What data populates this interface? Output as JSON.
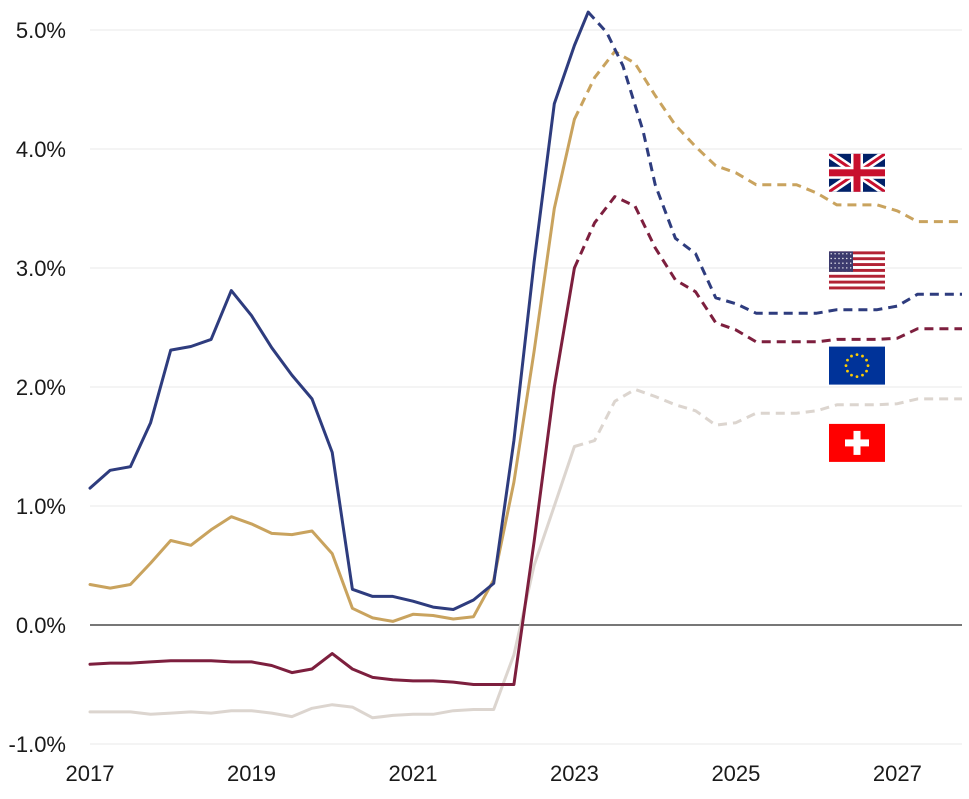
{
  "chart_data": {
    "type": "line",
    "title": "",
    "xlabel": "",
    "ylabel": "",
    "xlim": [
      2017,
      2027.8
    ],
    "ylim": [
      -1.0,
      5.0
    ],
    "grid": true,
    "legend": "flags at right",
    "x_ticks": [
      {
        "value": 2017,
        "label": "2017"
      },
      {
        "value": 2019,
        "label": "2019"
      },
      {
        "value": 2021,
        "label": "2021"
      },
      {
        "value": 2023,
        "label": "2023"
      },
      {
        "value": 2025,
        "label": "2025"
      },
      {
        "value": 2027,
        "label": "2027"
      }
    ],
    "y_ticks": [
      {
        "value": 5.0,
        "label": "5.0%"
      },
      {
        "value": 4.0,
        "label": "4.0%"
      },
      {
        "value": 3.0,
        "label": "3.0%"
      },
      {
        "value": 2.0,
        "label": "2.0%"
      },
      {
        "value": 1.0,
        "label": "1.0%"
      },
      {
        "value": 0.0,
        "label": "0.0%"
      },
      {
        "value": -1.0,
        "label": "-1.0%"
      }
    ],
    "series": [
      {
        "flag": "us-flag",
        "color": "#2e3c7e",
        "actual": [
          [
            2017.0,
            1.15
          ],
          [
            2017.25,
            1.3
          ],
          [
            2017.5,
            1.33
          ],
          [
            2017.75,
            1.7
          ],
          [
            2018.0,
            2.31
          ],
          [
            2018.25,
            2.34
          ],
          [
            2018.5,
            2.4
          ],
          [
            2018.75,
            2.81
          ],
          [
            2019.0,
            2.6
          ],
          [
            2019.25,
            2.33
          ],
          [
            2019.5,
            2.1
          ],
          [
            2019.75,
            1.9
          ],
          [
            2020.0,
            1.45
          ],
          [
            2020.25,
            0.3
          ],
          [
            2020.5,
            0.24
          ],
          [
            2020.75,
            0.24
          ],
          [
            2021.0,
            0.2
          ],
          [
            2021.25,
            0.15
          ],
          [
            2021.5,
            0.13
          ],
          [
            2021.75,
            0.21
          ],
          [
            2022.0,
            0.35
          ],
          [
            2022.25,
            1.55
          ],
          [
            2022.5,
            3.05
          ],
          [
            2022.75,
            4.38
          ],
          [
            2023.0,
            4.87
          ],
          [
            2023.17,
            5.15
          ]
        ],
        "forecast": [
          [
            2023.17,
            5.15
          ],
          [
            2023.4,
            4.98
          ],
          [
            2023.6,
            4.7
          ],
          [
            2023.85,
            4.15
          ],
          [
            2024.0,
            3.7
          ],
          [
            2024.25,
            3.25
          ],
          [
            2024.5,
            3.12
          ],
          [
            2024.75,
            2.75
          ],
          [
            2025.0,
            2.7
          ],
          [
            2025.25,
            2.62
          ],
          [
            2025.5,
            2.62
          ],
          [
            2025.75,
            2.62
          ],
          [
            2026.0,
            2.62
          ],
          [
            2026.25,
            2.65
          ],
          [
            2026.5,
            2.65
          ],
          [
            2026.75,
            2.65
          ],
          [
            2027.0,
            2.68
          ],
          [
            2027.25,
            2.78
          ],
          [
            2027.8,
            2.78
          ]
        ]
      },
      {
        "flag": "uk-flag",
        "color": "#c9a35e",
        "actual": [
          [
            2017.0,
            0.34
          ],
          [
            2017.25,
            0.31
          ],
          [
            2017.5,
            0.34
          ],
          [
            2017.75,
            0.52
          ],
          [
            2018.0,
            0.71
          ],
          [
            2018.25,
            0.67
          ],
          [
            2018.5,
            0.8
          ],
          [
            2018.75,
            0.91
          ],
          [
            2019.0,
            0.85
          ],
          [
            2019.25,
            0.77
          ],
          [
            2019.5,
            0.76
          ],
          [
            2019.75,
            0.79
          ],
          [
            2020.0,
            0.6
          ],
          [
            2020.25,
            0.14
          ],
          [
            2020.5,
            0.06
          ],
          [
            2020.75,
            0.03
          ],
          [
            2021.0,
            0.09
          ],
          [
            2021.25,
            0.08
          ],
          [
            2021.5,
            0.05
          ],
          [
            2021.75,
            0.07
          ],
          [
            2022.0,
            0.38
          ],
          [
            2022.25,
            1.2
          ],
          [
            2022.5,
            2.3
          ],
          [
            2022.75,
            3.5
          ],
          [
            2023.0,
            4.25
          ]
        ],
        "forecast": [
          [
            2023.0,
            4.25
          ],
          [
            2023.25,
            4.6
          ],
          [
            2023.5,
            4.82
          ],
          [
            2023.75,
            4.72
          ],
          [
            2024.0,
            4.45
          ],
          [
            2024.25,
            4.2
          ],
          [
            2024.5,
            4.02
          ],
          [
            2024.75,
            3.86
          ],
          [
            2025.0,
            3.8
          ],
          [
            2025.25,
            3.7
          ],
          [
            2025.5,
            3.7
          ],
          [
            2025.75,
            3.7
          ],
          [
            2026.0,
            3.63
          ],
          [
            2026.25,
            3.53
          ],
          [
            2026.5,
            3.53
          ],
          [
            2026.75,
            3.53
          ],
          [
            2027.0,
            3.48
          ],
          [
            2027.25,
            3.39
          ],
          [
            2027.8,
            3.39
          ]
        ]
      },
      {
        "flag": "eu-flag",
        "color": "#7d1f3e",
        "actual": [
          [
            2017.0,
            -0.33
          ],
          [
            2017.25,
            -0.32
          ],
          [
            2017.5,
            -0.32
          ],
          [
            2017.75,
            -0.31
          ],
          [
            2018.0,
            -0.3
          ],
          [
            2018.25,
            -0.3
          ],
          [
            2018.5,
            -0.3
          ],
          [
            2018.75,
            -0.31
          ],
          [
            2019.0,
            -0.31
          ],
          [
            2019.25,
            -0.34
          ],
          [
            2019.5,
            -0.4
          ],
          [
            2019.75,
            -0.37
          ],
          [
            2020.0,
            -0.24
          ],
          [
            2020.25,
            -0.37
          ],
          [
            2020.5,
            -0.44
          ],
          [
            2020.75,
            -0.46
          ],
          [
            2021.0,
            -0.47
          ],
          [
            2021.25,
            -0.47
          ],
          [
            2021.5,
            -0.48
          ],
          [
            2021.75,
            -0.5
          ],
          [
            2022.0,
            -0.5
          ],
          [
            2022.25,
            -0.5
          ],
          [
            2022.5,
            0.7
          ],
          [
            2022.75,
            2.0
          ],
          [
            2023.0,
            3.0
          ]
        ],
        "forecast": [
          [
            2023.0,
            3.0
          ],
          [
            2023.25,
            3.38
          ],
          [
            2023.5,
            3.6
          ],
          [
            2023.75,
            3.52
          ],
          [
            2024.0,
            3.17
          ],
          [
            2024.25,
            2.9
          ],
          [
            2024.5,
            2.8
          ],
          [
            2024.75,
            2.54
          ],
          [
            2025.0,
            2.48
          ],
          [
            2025.25,
            2.38
          ],
          [
            2025.5,
            2.38
          ],
          [
            2025.75,
            2.38
          ],
          [
            2026.0,
            2.38
          ],
          [
            2026.25,
            2.4
          ],
          [
            2026.5,
            2.4
          ],
          [
            2026.75,
            2.4
          ],
          [
            2027.0,
            2.41
          ],
          [
            2027.25,
            2.49
          ],
          [
            2027.8,
            2.49
          ]
        ]
      },
      {
        "flag": "swiss-flag",
        "color": "#dcd5cf",
        "actual": [
          [
            2017.0,
            -0.73
          ],
          [
            2017.25,
            -0.73
          ],
          [
            2017.5,
            -0.73
          ],
          [
            2017.75,
            -0.75
          ],
          [
            2018.0,
            -0.74
          ],
          [
            2018.25,
            -0.73
          ],
          [
            2018.5,
            -0.74
          ],
          [
            2018.75,
            -0.72
          ],
          [
            2019.0,
            -0.72
          ],
          [
            2019.25,
            -0.74
          ],
          [
            2019.5,
            -0.77
          ],
          [
            2019.75,
            -0.7
          ],
          [
            2020.0,
            -0.67
          ],
          [
            2020.25,
            -0.69
          ],
          [
            2020.5,
            -0.78
          ],
          [
            2020.75,
            -0.76
          ],
          [
            2021.0,
            -0.75
          ],
          [
            2021.25,
            -0.75
          ],
          [
            2021.5,
            -0.72
          ],
          [
            2021.75,
            -0.71
          ],
          [
            2022.0,
            -0.71
          ],
          [
            2022.25,
            -0.25
          ],
          [
            2022.5,
            0.5
          ],
          [
            2022.75,
            1.0
          ],
          [
            2023.0,
            1.5
          ]
        ],
        "forecast": [
          [
            2023.0,
            1.5
          ],
          [
            2023.25,
            1.55
          ],
          [
            2023.5,
            1.88
          ],
          [
            2023.75,
            1.98
          ],
          [
            2024.0,
            1.92
          ],
          [
            2024.25,
            1.85
          ],
          [
            2024.5,
            1.8
          ],
          [
            2024.75,
            1.68
          ],
          [
            2025.0,
            1.7
          ],
          [
            2025.25,
            1.78
          ],
          [
            2025.5,
            1.78
          ],
          [
            2025.75,
            1.78
          ],
          [
            2026.0,
            1.8
          ],
          [
            2026.25,
            1.85
          ],
          [
            2026.5,
            1.85
          ],
          [
            2026.75,
            1.85
          ],
          [
            2027.0,
            1.86
          ],
          [
            2027.25,
            1.9
          ],
          [
            2027.8,
            1.9
          ]
        ]
      }
    ],
    "flags": [
      {
        "name": "uk-flag",
        "near_value": 3.8
      },
      {
        "name": "us-flag",
        "near_value": 2.98
      },
      {
        "name": "eu-flag",
        "near_value": 2.18
      },
      {
        "name": "swiss-flag",
        "near_value": 1.53
      }
    ]
  }
}
